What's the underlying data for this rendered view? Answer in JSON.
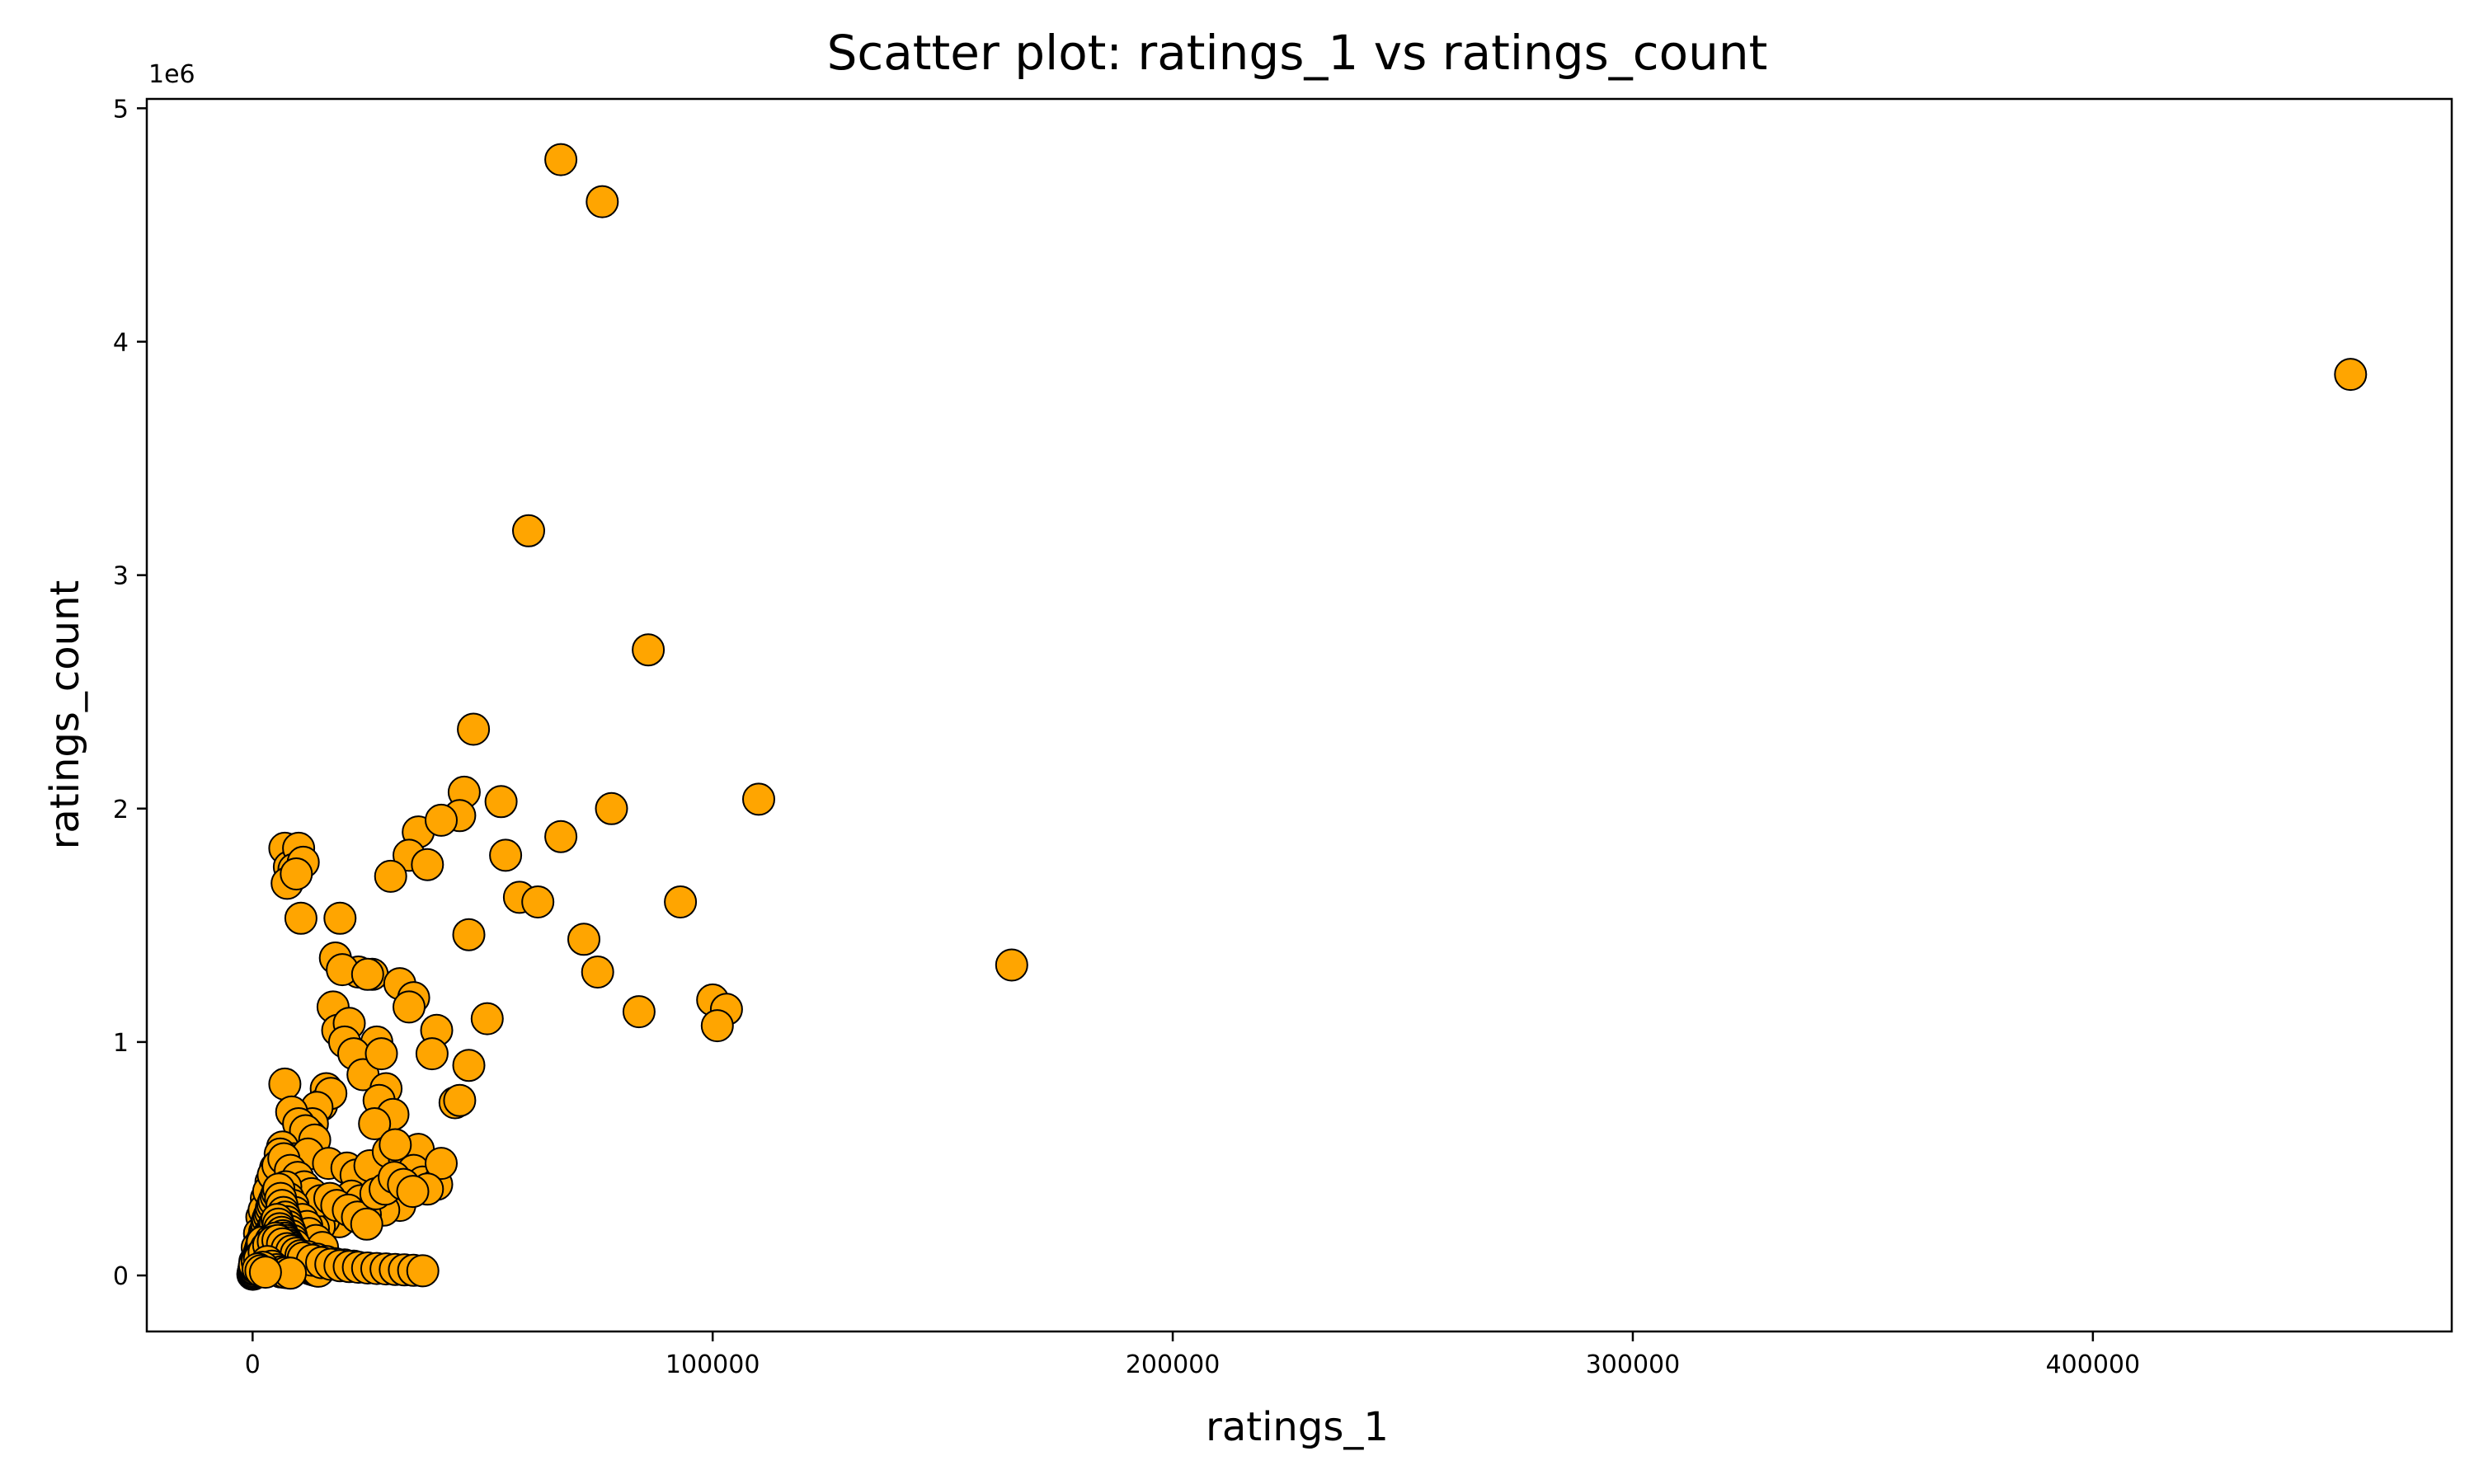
{
  "chart_data": {
    "type": "scatter",
    "title": "Scatter plot: ratings_1 vs ratings_count",
    "xlabel": "ratings_1",
    "ylabel": "ratings_count",
    "y_offset_label": "1e6",
    "xlim": [
      -23000,
      478000
    ],
    "ylim": [
      -240000,
      5040000
    ],
    "x_ticks": [
      0,
      100000,
      200000,
      300000,
      400000
    ],
    "x_tick_labels": [
      "0",
      "100000",
      "200000",
      "300000",
      "400000"
    ],
    "y_ticks": [
      0,
      1000000,
      2000000,
      3000000,
      4000000,
      5000000
    ],
    "y_tick_labels": [
      "0",
      "1",
      "2",
      "3",
      "4",
      "5"
    ],
    "grid": false,
    "marker_color": "#ffa500",
    "marker_edge_color": "#000000",
    "series": [
      {
        "x": [
          67000,
          76000,
          456000,
          60000,
          86000,
          48000,
          110000,
          46000,
          54000,
          78000,
          45000,
          67000,
          36000,
          41000,
          34000,
          38000,
          55000,
          30000,
          58000,
          62000,
          93000,
          47000,
          72000,
          165000,
          26000,
          75000,
          32000,
          100000,
          103000,
          84000,
          101000,
          35000,
          34000,
          51000,
          40000,
          47000,
          27000,
          39000,
          44000,
          45000,
          7000,
          8000,
          10000,
          9000,
          7500,
          11000,
          9500,
          10500,
          19000,
          18000,
          23000,
          19500,
          25000,
          17500,
          18500,
          21000,
          20000,
          22000,
          24000,
          28000,
          29000,
          27500,
          30500,
          26500,
          16000,
          15000,
          17000,
          14000,
          13000,
          12500,
          7000,
          8500,
          10000,
          11500,
          13500,
          6500,
          9000,
          12000,
          16500,
          20500,
          22500,
          25500,
          29500,
          33000,
          36000,
          31000,
          35000,
          37000,
          40000,
          41000,
          38000,
          32000,
          28500,
          21500,
          23500,
          24500,
          18800,
          15500,
          14500,
          13200,
          6000,
          5000,
          4000,
          3000,
          2000,
          1500,
          1000,
          500,
          300,
          100,
          2500,
          3500,
          4500,
          5500,
          6800,
          8200,
          9800,
          11200,
          12800,
          14800,
          16800,
          18300,
          20800,
          22800,
          24800,
          26800,
          28800,
          30800,
          32800,
          34800,
          1200,
          1800,
          2200,
          2800,
          3200,
          3800,
          4200,
          4800,
          5200,
          5800,
          6200,
          7200,
          7800,
          8800,
          9200,
          10800,
          11800,
          12200,
          13800,
          15200,
          700,
          900,
          1100,
          1300,
          1600,
          1900,
          2100,
          2400,
          2600,
          2900,
          3100,
          3300,
          3600,
          3900,
          4100,
          4400,
          4700,
          5100,
          5400,
          5700,
          6100,
          6400,
          6700,
          7100,
          7400,
          7700,
          8100,
          8400,
          8700,
          9100,
          400,
          600,
          800,
          1400,
          1700,
          2300,
          2700,
          3400,
          3700,
          4300,
          4600,
          4900,
          5300,
          5600,
          5900,
          6300,
          6600,
          6900,
          7300,
          7600,
          7900,
          8300,
          8600,
          8900,
          9300,
          9600,
          9900,
          10300,
          10600,
          10900,
          11300,
          11600,
          11900,
          12300,
          12600,
          12900,
          13300,
          13600,
          13900,
          14300,
          200,
          350,
          450,
          550,
          650,
          750,
          850,
          950,
          1050,
          1150,
          1250,
          1350,
          1450,
          1550,
          1650,
          1750,
          1850,
          1950,
          2050,
          2150,
          250,
          150,
          50,
          120,
          180,
          220,
          280,
          320,
          380,
          420,
          1000,
          2000,
          3000,
          4000,
          5000,
          6000,
          7000,
          8000,
          9000,
          10000,
          1500,
          2500,
          3500,
          4500,
          5500,
          6500,
          7500,
          8500,
          9500,
          10500,
          12000,
          14000,
          16000,
          18000,
          20000,
          22000,
          11000,
          13000,
          15000,
          17000,
          19000,
          21000,
          23000,
          25000,
          27000,
          29000,
          31000,
          33000,
          35000,
          37000,
          3200,
          4200,
          5200,
          6200,
          7200,
          8200,
          2200,
          1200,
          1800,
          2800
        ],
        "y": [
          4780000,
          4600000,
          3860000,
          3190000,
          2680000,
          2340000,
          2040000,
          2070000,
          2030000,
          2000000,
          1970000,
          1880000,
          1900000,
          1950000,
          1800000,
          1760000,
          1800000,
          1710000,
          1620000,
          1600000,
          1600000,
          1460000,
          1440000,
          1330000,
          1290000,
          1300000,
          1250000,
          1180000,
          1140000,
          1130000,
          1070000,
          1190000,
          1150000,
          1100000,
          1050000,
          900000,
          1000000,
          950000,
          740000,
          750000,
          1830000,
          1750000,
          1830000,
          1740000,
          1680000,
          1770000,
          1720000,
          1530000,
          1530000,
          1360000,
          1300000,
          1310000,
          1290000,
          1150000,
          1050000,
          1080000,
          1000000,
          950000,
          860000,
          950000,
          800000,
          750000,
          690000,
          650000,
          800000,
          730000,
          780000,
          720000,
          650000,
          600000,
          820000,
          700000,
          650000,
          620000,
          580000,
          550000,
          500000,
          520000,
          480000,
          460000,
          430000,
          470000,
          530000,
          500000,
          540000,
          560000,
          450000,
          400000,
          390000,
          480000,
          370000,
          300000,
          280000,
          340000,
          320000,
          260000,
          230000,
          240000,
          210000,
          200000,
          520000,
          460000,
          400000,
          330000,
          250000,
          180000,
          120000,
          60000,
          30000,
          10000,
          280000,
          360000,
          430000,
          470000,
          500000,
          450000,
          420000,
          380000,
          350000,
          320000,
          330000,
          300000,
          280000,
          250000,
          220000,
          350000,
          370000,
          420000,
          390000,
          360000,
          80000,
          110000,
          140000,
          170000,
          200000,
          230000,
          260000,
          290000,
          310000,
          340000,
          360000,
          380000,
          330000,
          300000,
          270000,
          240000,
          210000,
          180000,
          150000,
          120000,
          40000,
          55000,
          70000,
          90000,
          105000,
          125000,
          150000,
          165000,
          185000,
          200000,
          220000,
          240000,
          255000,
          270000,
          290000,
          305000,
          320000,
          340000,
          355000,
          370000,
          330000,
          300000,
          270000,
          250000,
          230000,
          210000,
          190000,
          170000,
          150000,
          130000,
          20000,
          35000,
          50000,
          75000,
          95000,
          115000,
          135000,
          160000,
          180000,
          200000,
          210000,
          225000,
          240000,
          220000,
          200000,
          185000,
          170000,
          160000,
          150000,
          140000,
          130000,
          120000,
          110000,
          100000,
          90000,
          80000,
          70000,
          60000,
          55000,
          50000,
          45000,
          40000,
          35000,
          30000,
          28000,
          26000,
          24000,
          22000,
          20000,
          18000,
          15000,
          22000,
          28000,
          35000,
          42000,
          48000,
          55000,
          62000,
          68000,
          75000,
          82000,
          88000,
          95000,
          100000,
          108000,
          115000,
          122000,
          128000,
          135000,
          142000,
          10000,
          8000,
          5000,
          6000,
          12000,
          18000,
          25000,
          30000,
          38000,
          45000,
          60000,
          90000,
          120000,
          150000,
          160000,
          140000,
          120000,
          110000,
          100000,
          90000,
          70000,
          100000,
          130000,
          145000,
          150000,
          135000,
          115000,
          105000,
          95000,
          85000,
          80000,
          70000,
          60000,
          50000,
          45000,
          40000,
          75000,
          65000,
          55000,
          48000,
          42000,
          38000,
          35000,
          32000,
          30000,
          28000,
          26000,
          24000,
          22000,
          20000,
          60000,
          40000,
          25000,
          15000,
          12000,
          10000,
          35000,
          28000,
          20000,
          14000
        ]
      }
    ]
  }
}
